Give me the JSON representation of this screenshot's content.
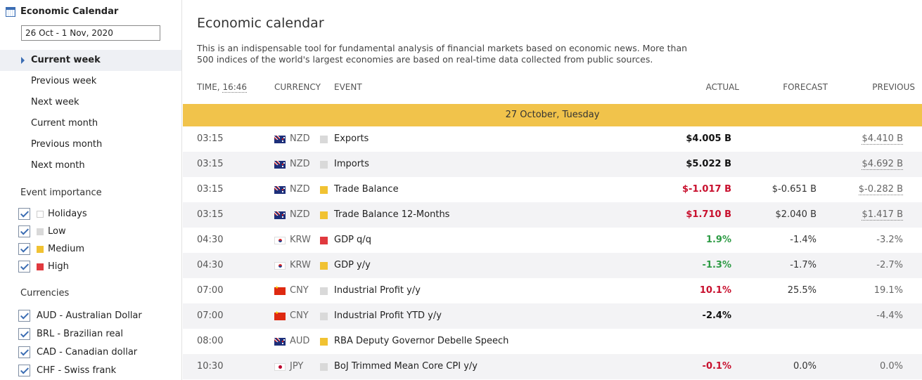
{
  "sidebar": {
    "title": "Economic Calendar",
    "date_range": "26 Oct - 1 Nov, 2020",
    "periods": [
      "Current week",
      "Previous week",
      "Next week",
      "Current month",
      "Previous month",
      "Next month"
    ],
    "active_period": "Current week",
    "importance_title": "Event importance",
    "importance": [
      {
        "label": "Holidays",
        "color": "#ffffff"
      },
      {
        "label": "Low",
        "color": "#d9d9d9"
      },
      {
        "label": "Medium",
        "color": "#f1c232"
      },
      {
        "label": "High",
        "color": "#e0393e"
      }
    ],
    "currencies_title": "Currencies",
    "currencies": [
      "AUD - Australian Dollar",
      "BRL - Brazilian real",
      "CAD - Canadian dollar",
      "CHF - Swiss frank"
    ]
  },
  "main": {
    "title": "Economic calendar",
    "description": "This is an indispensable tool for fundamental analysis of financial markets based on economic news. More than 500 indices of the world's largest economies are based on real-time data collected from public sources.",
    "columns": {
      "time": "TIME,",
      "time_value": "16:46",
      "currency": "CURRENCY",
      "event": "EVENT",
      "actual": "ACTUAL",
      "forecast": "FORECAST",
      "previous": "PREVIOUS"
    },
    "day_header": "27 October, Tuesday",
    "events": [
      {
        "time": "03:15",
        "flag": "nz",
        "currency": "NZD",
        "importance": "low",
        "event": "Exports",
        "actual": "$4.005 B",
        "actual_tone": "blk",
        "forecast": "",
        "previous": "$4.410 B",
        "previous_underlined": true
      },
      {
        "time": "03:15",
        "flag": "nz",
        "currency": "NZD",
        "importance": "low",
        "event": "Imports",
        "actual": "$5.022 B",
        "actual_tone": "blk",
        "forecast": "",
        "previous": "$4.692 B",
        "previous_underlined": true
      },
      {
        "time": "03:15",
        "flag": "nz",
        "currency": "NZD",
        "importance": "medium",
        "event": "Trade Balance",
        "actual": "$-1.017 B",
        "actual_tone": "neg",
        "forecast": "$-0.651 B",
        "previous": "$-0.282 B",
        "previous_underlined": true
      },
      {
        "time": "03:15",
        "flag": "nz",
        "currency": "NZD",
        "importance": "medium",
        "event": "Trade Balance 12-Months",
        "actual": "$1.710 B",
        "actual_tone": "neg",
        "forecast": "$2.040 B",
        "previous": "$1.417 B",
        "previous_underlined": true
      },
      {
        "time": "04:30",
        "flag": "kr",
        "currency": "KRW",
        "importance": "high",
        "event": "GDP q/q",
        "actual": "1.9%",
        "actual_tone": "pos",
        "forecast": "-1.4%",
        "previous": "-3.2%",
        "previous_underlined": false
      },
      {
        "time": "04:30",
        "flag": "kr",
        "currency": "KRW",
        "importance": "medium",
        "event": "GDP y/y",
        "actual": "-1.3%",
        "actual_tone": "pos",
        "forecast": "-1.7%",
        "previous": "-2.7%",
        "previous_underlined": false
      },
      {
        "time": "07:00",
        "flag": "cn",
        "currency": "CNY",
        "importance": "low",
        "event": "Industrial Profit y/y",
        "actual": "10.1%",
        "actual_tone": "neg",
        "forecast": "25.5%",
        "previous": "19.1%",
        "previous_underlined": false
      },
      {
        "time": "07:00",
        "flag": "cn",
        "currency": "CNY",
        "importance": "low",
        "event": "Industrial Profit YTD y/y",
        "actual": "-2.4%",
        "actual_tone": "blk",
        "forecast": "",
        "previous": "-4.4%",
        "previous_underlined": false
      },
      {
        "time": "08:00",
        "flag": "au",
        "currency": "AUD",
        "importance": "medium",
        "event": "RBA Deputy Governor Debelle Speech",
        "actual": "",
        "actual_tone": "blk",
        "forecast": "",
        "previous": "",
        "previous_underlined": false
      },
      {
        "time": "10:30",
        "flag": "jp",
        "currency": "JPY",
        "importance": "low",
        "event": "BoJ Trimmed Mean Core CPI y/y",
        "actual": "-0.1%",
        "actual_tone": "neg",
        "forecast": "0.0%",
        "previous": "0.0%",
        "previous_underlined": false
      }
    ]
  },
  "colors": {
    "accent": "#3b6db3",
    "day_bar": "#f1c34b",
    "negative": "#c8102e",
    "positive": "#2e9b45",
    "importance_low": "#d9d9d9",
    "importance_medium": "#f1c232",
    "importance_high": "#e0393e"
  }
}
